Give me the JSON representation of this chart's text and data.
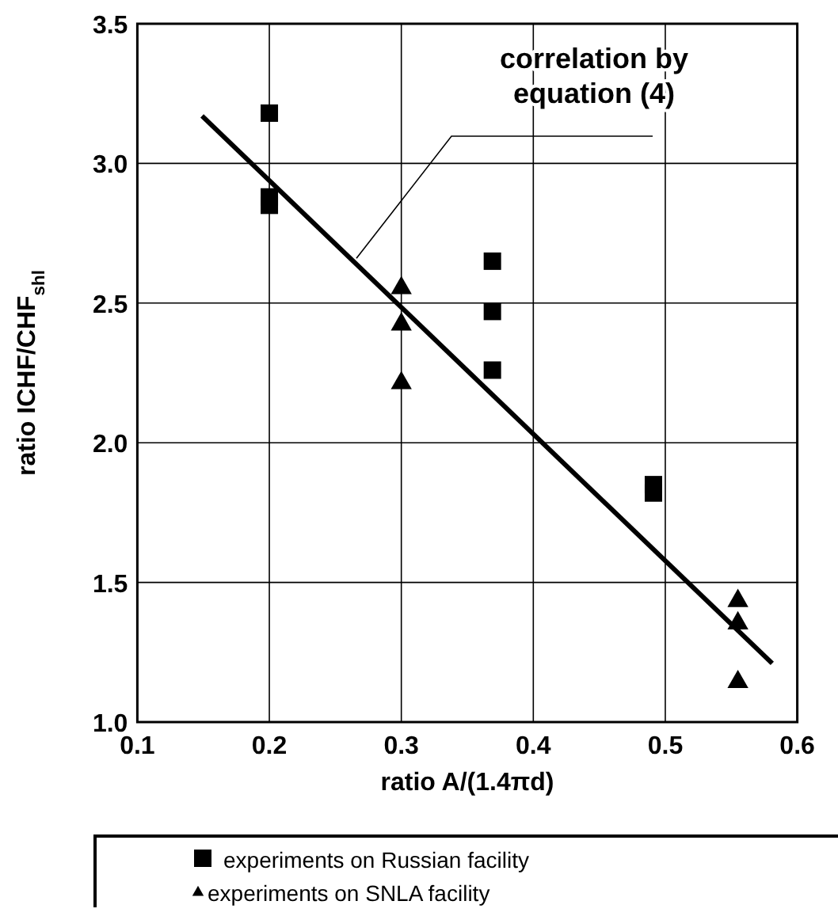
{
  "chart_data": {
    "type": "scatter",
    "xlabel": "ratio A/(1.4πd)",
    "ylabel": "ratio ICHF/CHF$_{shl}$",
    "xlim": [
      0.1,
      0.6
    ],
    "xticks": [
      0.1,
      0.2,
      0.3,
      {
        "value": 0.4,
        "label": "0.4"
      },
      0.5,
      0.6
    ],
    "ylim": [
      1.0,
      3.5
    ],
    "yticks": [
      {
        "value": 1.0,
        "label": "1.0"
      },
      1.5,
      {
        "value": 2.0,
        "label": "2.0"
      },
      2.5,
      {
        "value": 3.0,
        "label": "3.0"
      },
      3.5
    ],
    "grid": true,
    "legend": "bottom",
    "series": [
      {
        "name": "experiments on Russian facility",
        "color": "#000000",
        "marker": "square",
        "x": [
          0.2,
          0.2,
          0.2,
          0.369,
          0.369,
          0.369,
          0.491,
          0.491
        ],
        "values": [
          3.18,
          2.88,
          2.85,
          2.65,
          2.47,
          2.26,
          1.85,
          1.82
        ]
      },
      {
        "name": "experiments on SNLA facility",
        "color": "#000000",
        "marker": "triangle",
        "x": [
          0.3,
          0.3,
          0.3,
          0.555,
          0.555,
          0.555
        ],
        "values": [
          2.56,
          2.43,
          2.22,
          1.44,
          1.36,
          1.15
        ]
      },
      {
        "type": "line",
        "color": "#000000",
        "x": [
          0.149,
          0.581
        ],
        "values": [
          3.17,
          1.21
        ]
      }
    ],
    "annotations": [
      {
        "text": "correlation by equation (4)",
        "x": 0.266,
        "y": 2.66
      }
    ]
  }
}
